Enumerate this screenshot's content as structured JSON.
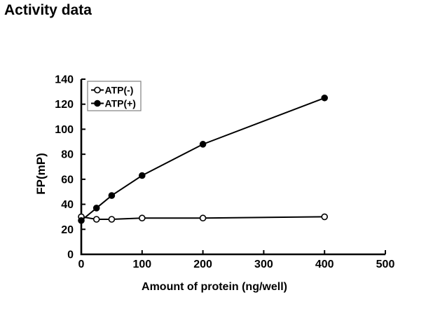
{
  "page": {
    "title": "Activity data",
    "background": "#ffffff",
    "text_color": "#000000"
  },
  "chart_data": {
    "type": "line",
    "title": "",
    "xlabel": "Amount of protein (ng/well)",
    "ylabel": "FP(mP)",
    "xlim": [
      0,
      500
    ],
    "ylim": [
      0,
      140
    ],
    "x_ticks": [
      0,
      100,
      200,
      300,
      400,
      500
    ],
    "y_ticks": [
      0,
      20,
      40,
      60,
      80,
      100,
      120,
      140
    ],
    "grid": false,
    "legend_position": "top-left-inside",
    "legend_border_color": "#808080",
    "axis_color": "#000000",
    "x": [
      0,
      25,
      50,
      100,
      200,
      400
    ],
    "series": [
      {
        "name": "ATP(-)",
        "marker": "open-circle-icon",
        "line_color": "#000000",
        "marker_fill": "#ffffff",
        "values": [
          30,
          28,
          28,
          29,
          29,
          30
        ]
      },
      {
        "name": "ATP(+)",
        "marker": "filled-circle-icon",
        "line_color": "#000000",
        "marker_fill": "#000000",
        "values": [
          27,
          37,
          47,
          63,
          88,
          125
        ]
      }
    ]
  }
}
